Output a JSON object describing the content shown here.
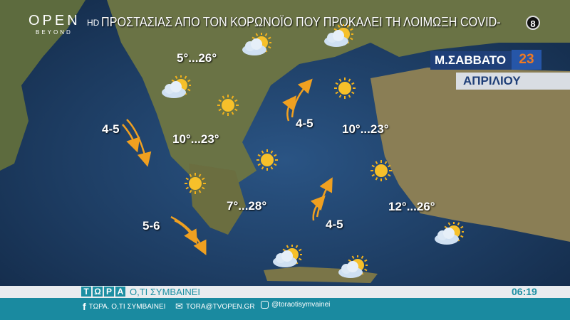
{
  "channel": {
    "logo_text": "OPEN",
    "logo_sub": "BEYOND",
    "hd": "HD",
    "rating": "8"
  },
  "ticker": "ΠΡΟΣΤΑΣΙΑΣ ΑΠΟ ΤΟΝ ΚΟΡΩΝΟΪΟ ΠΟΥ ΠΡΟΚΑΛΕΙ ΤΗ ΛΟΙΜΩΞΗ COVID-",
  "date": {
    "day": "Μ.ΣΑΒΒΑΤΟ",
    "number": "23",
    "month": "ΑΠΡΙΛΙΟΥ"
  },
  "temperatures": [
    "5°...26°",
    "10°...23°",
    "7°...28°",
    "10°...23°",
    "12°...26°"
  ],
  "winds": [
    "4-5",
    "5-6",
    "4-5",
    "4-5"
  ],
  "icons": {
    "sun": "sun-icon",
    "partly": "partly-cloudy-icon",
    "wind": "wind-arrow-icon"
  },
  "colors": {
    "sea": "#1d3a5e",
    "arrow": "#f0a020",
    "teal": "#1a8aa0",
    "navy": "#1f3f78",
    "date_number": "#f07a22"
  },
  "bottom": {
    "brand": [
      "Τ",
      "Ω",
      "Ρ",
      "Α"
    ],
    "slogan": "Ο,ΤΙ ΣΥΜΒΑΙΝΕΙ",
    "time": "06:19",
    "facebook": "ΤΩΡΑ. Ο,ΤΙ ΣΥΜΒΑΙΝΕΙ",
    "email": "TORA@TVOPEN.GR",
    "instagram": "@toraotisymvainei"
  }
}
